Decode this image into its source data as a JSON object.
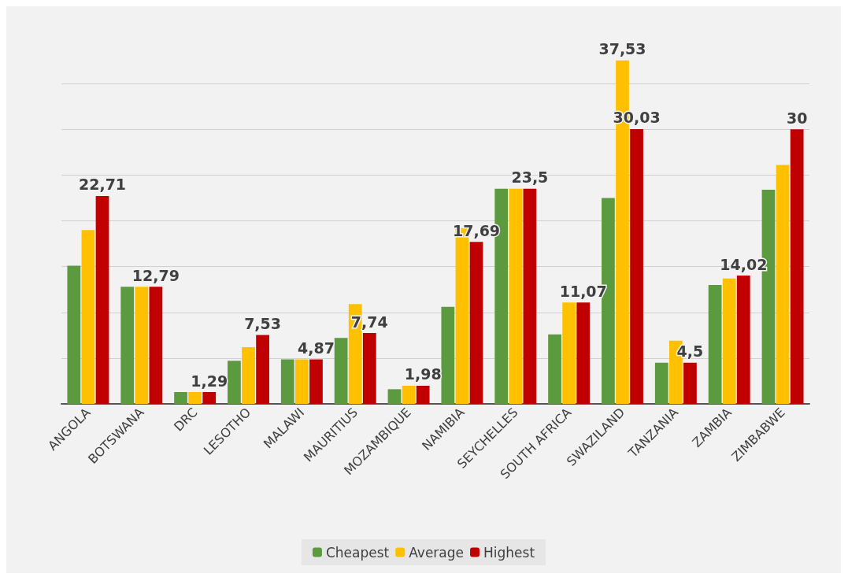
{
  "chart_data": {
    "type": "bar",
    "categories": [
      "ANGOLA",
      "BOTSWANA",
      "DRC",
      "LESOTHO",
      "MALAWI",
      "MAURITIUS",
      "MOZAMBIQUE",
      "NAMIBIA",
      "SEYCHELLES",
      "SOUTH AFRICA",
      "SWAZILAND",
      "TANZANIA",
      "ZAMBIA",
      "ZIMBABWE"
    ],
    "series": [
      {
        "name": "Cheapest",
        "color": "#5b9a3e",
        "values": [
          15.1,
          12.79,
          1.29,
          4.7,
          4.87,
          7.2,
          1.6,
          10.6,
          23.5,
          7.6,
          22.5,
          4.5,
          13.0,
          23.4
        ]
      },
      {
        "name": "Average",
        "color": "#ffc000",
        "values": [
          19.0,
          12.79,
          1.29,
          6.2,
          4.87,
          10.9,
          1.98,
          19.2,
          23.5,
          11.07,
          37.53,
          6.9,
          13.7,
          26.1
        ],
        "value_labels": [
          null,
          null,
          null,
          null,
          null,
          null,
          null,
          null,
          null,
          null,
          "37,53",
          null,
          null,
          null
        ]
      },
      {
        "name": "Highest",
        "color": "#c00000",
        "values": [
          22.71,
          12.79,
          1.29,
          7.53,
          4.87,
          7.74,
          1.98,
          17.69,
          23.5,
          11.07,
          30.03,
          4.5,
          14.02,
          30
        ],
        "value_labels": [
          "22,71",
          "12,79",
          "1,29",
          "7,53",
          "4,87",
          "7,74",
          "1,98",
          "17,69",
          "23,5",
          "11,07",
          "30,03",
          "4,5",
          "14,02",
          "30"
        ]
      }
    ],
    "yticks": [
      {
        "value": 0,
        "label": null
      },
      {
        "value": 5,
        "label": null
      },
      {
        "value": 10,
        "label": null
      },
      {
        "value": 15,
        "label": null
      },
      {
        "value": 20,
        "label": null
      },
      {
        "value": 25,
        "label": null
      },
      {
        "value": 30,
        "label": null
      },
      {
        "value": 35,
        "label": null
      }
    ],
    "tick_labels": "x",
    "grid": "y",
    "legend": "bottom"
  }
}
